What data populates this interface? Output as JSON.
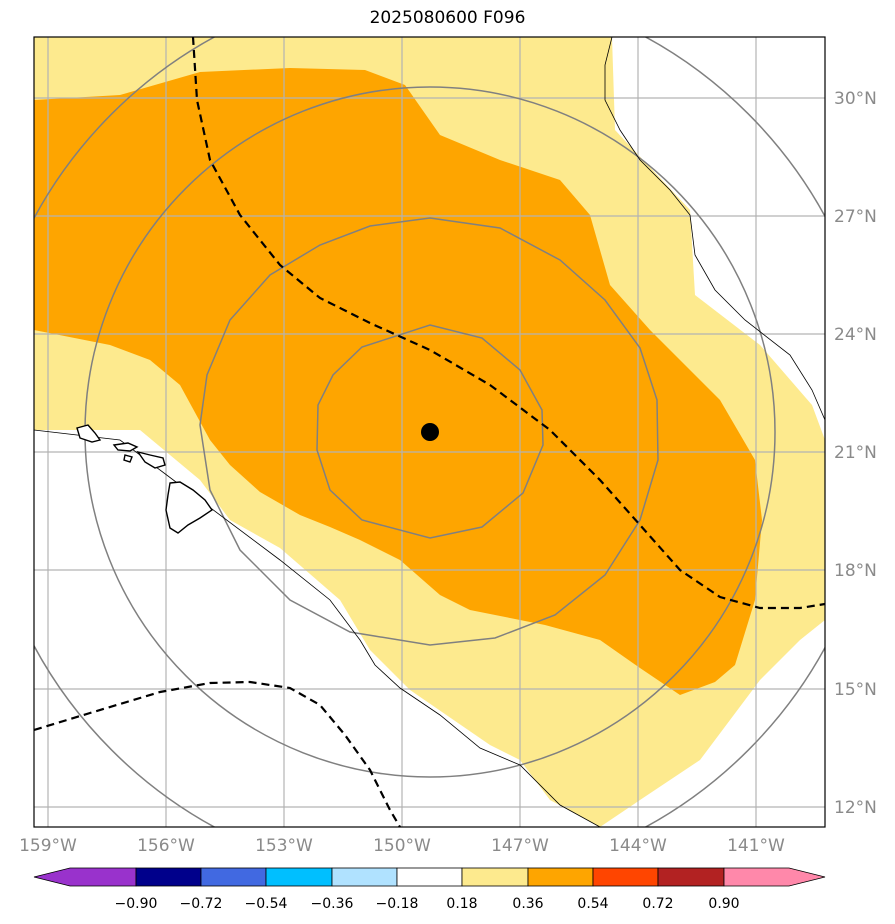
{
  "title": "2025080600 F096",
  "map": {
    "center_marker": {
      "lon": -148.8,
      "lat": 21.3,
      "shape": "filled-circle",
      "color": "#000000"
    },
    "lat_ticks": [
      "30°N",
      "27°N",
      "24°N",
      "21°N",
      "18°N",
      "15°N",
      "12°N"
    ],
    "lon_ticks": [
      "159°W",
      "156°W",
      "153°W",
      "150°W",
      "147°W",
      "144°W",
      "141°W"
    ],
    "shading_levels": [
      {
        "range": "0.18–0.36",
        "color": "#fdea8e"
      },
      {
        "range": "0.36–0.54",
        "color": "#fea500"
      }
    ],
    "range_rings": 4,
    "dashed_contours": 2,
    "features": [
      "hawaiian-islands",
      "coastline",
      "graticule"
    ]
  },
  "colorbar": {
    "labels": [
      "−0.90",
      "−0.72",
      "−0.54",
      "−0.36",
      "−0.18",
      "0.18",
      "0.36",
      "0.54",
      "0.72",
      "0.90"
    ],
    "colors": [
      "#9932cc",
      "#00008b",
      "#4169e1",
      "#00bfff",
      "#b0e2ff",
      "#ffffff",
      "#fdea8e",
      "#fea500",
      "#ff4500",
      "#b22222",
      "#ff88aa",
      "#ff88aa"
    ]
  }
}
